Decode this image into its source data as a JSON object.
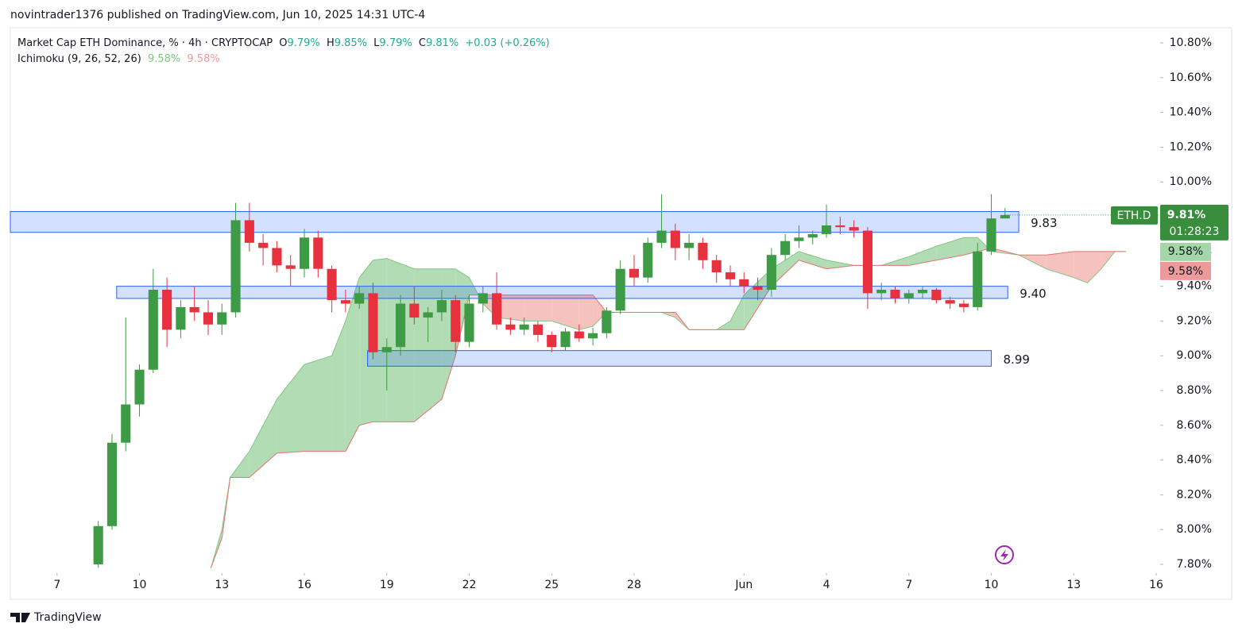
{
  "header": {
    "byline": "novintrader1376 published on TradingView.com, Jun 10, 2025 14:31 UTC-4"
  },
  "footer": {
    "brand": "TradingView"
  },
  "chart_data": {
    "type": "candlestick",
    "symbol_title": "Market Cap ETH Dominance, % · 4h · CRYPTOCAP",
    "ohlc_legend": [
      {
        "key": "O",
        "value": "9.79%"
      },
      {
        "key": "H",
        "value": "9.85%"
      },
      {
        "key": "L",
        "value": "9.79%"
      },
      {
        "key": "C",
        "value": "9.81%"
      }
    ],
    "change": "+0.03 (+0.26%)",
    "indicator": {
      "name": "Ichimoku (9, 26, 52, 26)",
      "span_a_label": "9.58%",
      "span_b_label": "9.58%"
    },
    "price_tag": {
      "symbol": "ETH.D",
      "value": "9.81%",
      "countdown": "01:28:23"
    },
    "up_color": "#3d9a45",
    "down_color": "#e8313f",
    "xlim": [
      5.3,
      47.0
    ],
    "xticks": [
      7,
      10,
      13,
      16,
      19,
      22,
      25,
      28,
      {
        "value": 32,
        "label": "Jun"
      },
      {
        "value": 35,
        "label": "4"
      },
      {
        "value": 38,
        "label": "7"
      },
      {
        "value": 41,
        "label": "10"
      },
      {
        "value": 44,
        "label": "13"
      },
      {
        "value": 47,
        "label": "16"
      }
    ],
    "ylim": [
      7.768,
      10.887
    ],
    "yticks": [
      {
        "value": 7.8,
        "label": "7.80%"
      },
      {
        "value": 8.0,
        "label": "8.00%"
      },
      {
        "value": 8.2,
        "label": "8.20%"
      },
      {
        "value": 8.4,
        "label": "8.40%"
      },
      {
        "value": 8.6,
        "label": "8.60%"
      },
      {
        "value": 8.8,
        "label": "8.80%"
      },
      {
        "value": 9.0,
        "label": "9.00%"
      },
      {
        "value": 9.2,
        "label": "9.20%"
      },
      {
        "value": 9.4,
        "label": "9.40%"
      },
      {
        "value": 9.6,
        "label": "9.60%"
      },
      {
        "value": 9.8,
        "label": "9.80%"
      },
      {
        "value": 10.0,
        "label": "10.00%"
      },
      {
        "value": 10.2,
        "label": "10.20%"
      },
      {
        "value": 10.4,
        "label": "10.40%"
      },
      {
        "value": 10.6,
        "label": "10.60%"
      },
      {
        "value": 10.8,
        "label": "10.80%"
      }
    ],
    "candles": {
      "x": [
        8.5,
        9,
        9.5,
        10,
        10.5,
        11,
        11.5,
        12,
        12.5,
        13,
        13.5,
        14,
        14.5,
        15,
        15.5,
        16,
        16.5,
        17,
        17.5,
        18,
        18.5,
        19,
        19.5,
        20,
        20.5,
        21,
        21.5,
        22,
        22.5,
        23,
        23.5,
        24,
        24.5,
        25,
        25.5,
        26,
        26.5,
        27,
        27.5,
        28,
        28.5,
        29,
        29.5,
        30,
        30.5,
        31,
        31.5,
        32,
        32.5,
        33,
        33.5,
        34,
        34.5,
        35,
        35.5,
        36,
        36.5,
        37,
        37.5,
        38,
        38.5,
        39,
        39.5,
        40,
        40.5,
        41,
        41.5
      ],
      "open": [
        7.8,
        8.02,
        8.5,
        8.72,
        8.92,
        9.38,
        9.15,
        9.28,
        9.25,
        9.18,
        9.25,
        9.78,
        9.65,
        9.62,
        9.52,
        9.5,
        9.68,
        9.5,
        9.32,
        9.3,
        9.36,
        9.02,
        9.05,
        9.3,
        9.22,
        9.25,
        9.32,
        9.08,
        9.3,
        9.36,
        9.18,
        9.15,
        9.18,
        9.12,
        9.05,
        9.14,
        9.1,
        9.13,
        9.26,
        9.5,
        9.45,
        9.65,
        9.72,
        9.62,
        9.65,
        9.55,
        9.48,
        9.44,
        9.4,
        9.38,
        9.58,
        9.66,
        9.68,
        9.7,
        9.75,
        9.74,
        9.72,
        9.36,
        9.38,
        9.33,
        9.36,
        9.38,
        9.32,
        9.3,
        9.28,
        9.6,
        9.79
      ],
      "high": [
        8.05,
        8.55,
        9.22,
        8.95,
        9.5,
        9.45,
        9.32,
        9.4,
        9.32,
        9.3,
        9.88,
        9.88,
        9.7,
        9.66,
        9.58,
        9.73,
        9.72,
        9.52,
        9.38,
        9.4,
        9.42,
        9.1,
        9.35,
        9.4,
        9.28,
        9.38,
        9.35,
        9.35,
        9.4,
        9.48,
        9.22,
        9.22,
        9.2,
        9.14,
        9.16,
        9.18,
        9.16,
        9.28,
        9.55,
        9.58,
        9.68,
        9.93,
        9.76,
        9.7,
        9.68,
        9.58,
        9.52,
        9.48,
        9.45,
        9.62,
        9.7,
        9.75,
        9.72,
        9.87,
        9.8,
        9.78,
        9.74,
        9.42,
        9.4,
        9.38,
        9.4,
        9.39,
        9.34,
        9.32,
        9.65,
        9.93,
        9.85
      ],
      "low": [
        7.78,
        8.0,
        8.45,
        8.65,
        8.9,
        9.05,
        9.1,
        9.2,
        9.12,
        9.12,
        9.22,
        9.6,
        9.52,
        9.48,
        9.4,
        9.45,
        9.45,
        9.25,
        9.25,
        9.27,
        8.98,
        8.8,
        9.0,
        9.18,
        9.08,
        9.2,
        9.02,
        9.05,
        9.25,
        9.15,
        9.12,
        9.12,
        9.08,
        9.02,
        9.03,
        9.08,
        9.06,
        9.1,
        9.24,
        9.4,
        9.42,
        9.62,
        9.55,
        9.55,
        9.5,
        9.42,
        9.4,
        9.36,
        9.32,
        9.34,
        9.55,
        9.62,
        9.64,
        9.68,
        9.7,
        9.68,
        9.27,
        9.32,
        9.3,
        9.3,
        9.33,
        9.3,
        9.27,
        9.25,
        9.26,
        9.58,
        9.79
      ],
      "close": [
        8.02,
        8.5,
        8.72,
        8.92,
        9.38,
        9.15,
        9.28,
        9.25,
        9.18,
        9.25,
        9.78,
        9.65,
        9.62,
        9.52,
        9.5,
        9.68,
        9.5,
        9.32,
        9.3,
        9.36,
        9.02,
        9.05,
        9.3,
        9.22,
        9.25,
        9.32,
        9.08,
        9.3,
        9.36,
        9.18,
        9.15,
        9.18,
        9.12,
        9.05,
        9.14,
        9.1,
        9.13,
        9.26,
        9.5,
        9.45,
        9.65,
        9.72,
        9.62,
        9.65,
        9.55,
        9.48,
        9.44,
        9.4,
        9.38,
        9.58,
        9.66,
        9.68,
        9.7,
        9.75,
        9.74,
        9.72,
        9.36,
        9.38,
        9.33,
        9.36,
        9.38,
        9.32,
        9.3,
        9.28,
        9.6,
        9.79,
        9.81
      ]
    },
    "ichimoku": {
      "up_color": "#a5d6a7",
      "down_color": "#f5b7b1",
      "span_a_color": "#81c784",
      "span_b_color": "#e57373",
      "x": [
        12.6,
        13,
        13.3,
        14,
        15,
        16,
        17,
        17.5,
        18,
        18.5,
        19,
        20,
        21,
        21.5,
        22,
        22.5,
        23,
        24,
        25,
        26,
        26.5,
        27,
        28,
        29,
        29.5,
        30,
        31,
        31.5,
        32,
        33,
        34,
        35,
        36,
        37,
        38,
        39,
        40,
        40.5,
        41,
        42,
        43,
        44,
        44.5,
        45,
        45.5,
        45.9
      ],
      "span_a": [
        7.78,
        8.0,
        8.3,
        8.45,
        8.75,
        8.95,
        9.0,
        9.2,
        9.45,
        9.55,
        9.56,
        9.5,
        9.5,
        9.5,
        9.45,
        9.3,
        9.22,
        9.2,
        9.2,
        9.15,
        9.17,
        9.25,
        9.25,
        9.25,
        9.22,
        9.15,
        9.15,
        9.2,
        9.35,
        9.5,
        9.6,
        9.55,
        9.52,
        9.52,
        9.57,
        9.63,
        9.68,
        9.68,
        9.6,
        9.58,
        9.5,
        9.45,
        9.42,
        9.5,
        9.6,
        9.6
      ],
      "span_b": [
        7.78,
        7.95,
        8.3,
        8.3,
        8.44,
        8.45,
        8.45,
        8.45,
        8.6,
        8.62,
        8.62,
        8.62,
        8.75,
        9.0,
        9.35,
        9.35,
        9.35,
        9.35,
        9.35,
        9.35,
        9.35,
        9.25,
        9.25,
        9.25,
        9.25,
        9.15,
        9.15,
        9.15,
        9.15,
        9.4,
        9.55,
        9.5,
        9.52,
        9.52,
        9.52,
        9.55,
        9.58,
        9.6,
        9.62,
        9.58,
        9.58,
        9.6,
        9.6,
        9.6,
        9.6,
        9.6
      ]
    },
    "zones": [
      {
        "label": "9.83",
        "x": [
          5.3,
          42.0
        ],
        "y": [
          9.83,
          9.71
        ]
      },
      {
        "label": "9.40",
        "x": [
          9.17,
          41.6
        ],
        "y": [
          9.4,
          9.33
        ]
      },
      {
        "label": "8.99",
        "x": [
          18.3,
          41.0
        ],
        "y": [
          9.03,
          8.94
        ]
      }
    ],
    "zone_color": "#2962ff"
  }
}
